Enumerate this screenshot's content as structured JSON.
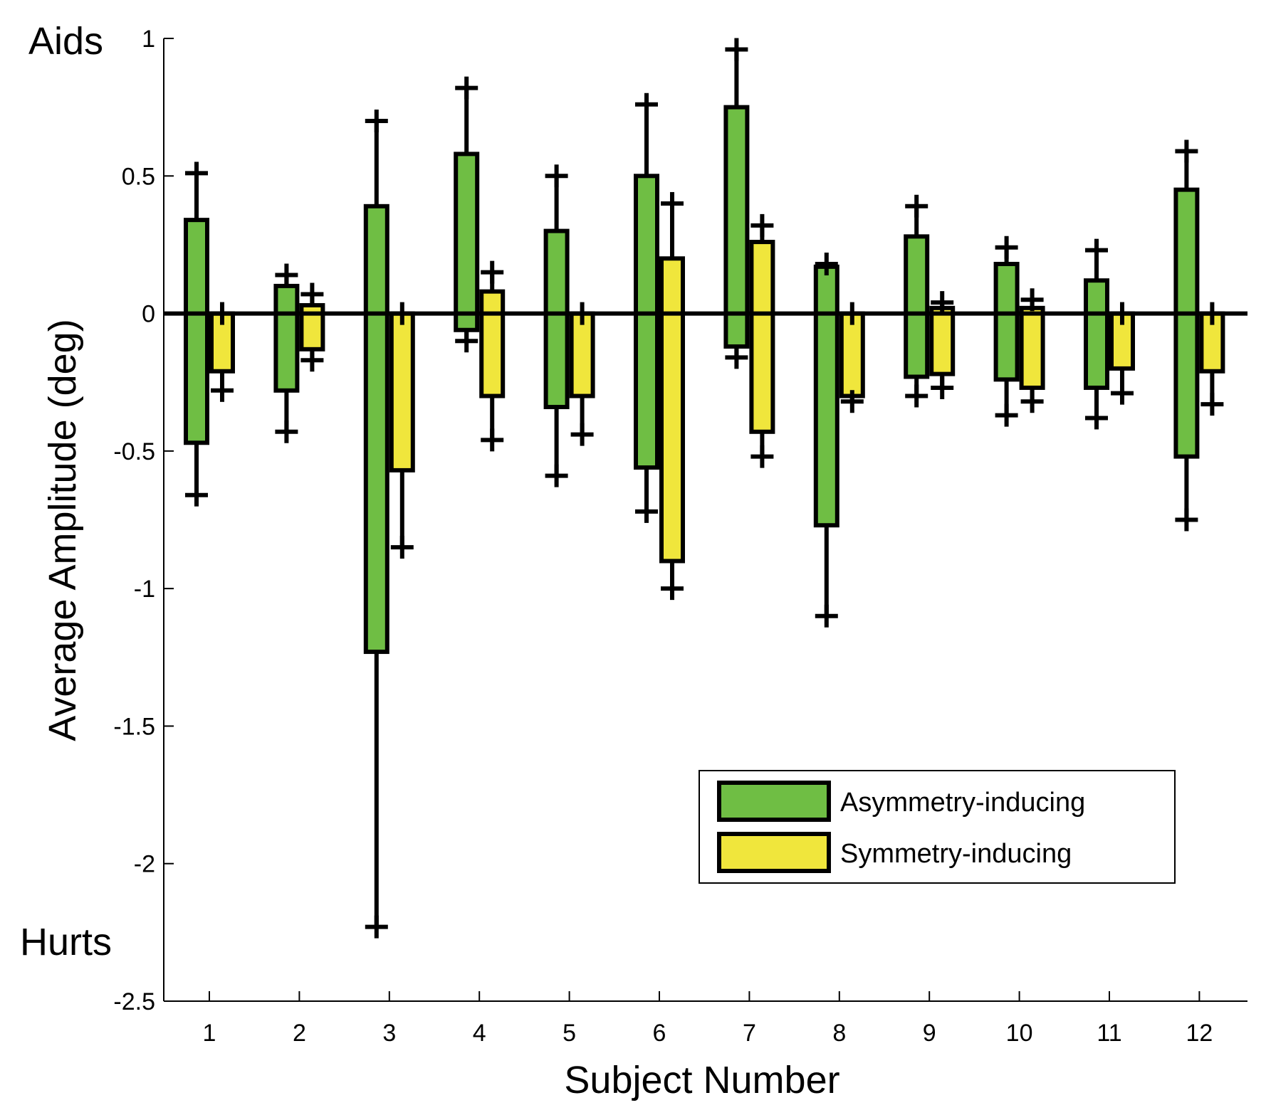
{
  "chart_data": {
    "type": "bar",
    "subtype": "floating-range-with-error-bars",
    "xlabel": "Subject Number",
    "ylabel": "Average Amplitude (deg)",
    "ylim": [
      -2.5,
      1
    ],
    "yticks": [
      1,
      0.5,
      0,
      -0.5,
      -1,
      -1.5,
      -2,
      -2.5
    ],
    "ytick_labels": [
      "1",
      "0.5",
      "0",
      "-0.5",
      "-1",
      "-1.5",
      "-2",
      "-2.5"
    ],
    "categories": [
      "1",
      "2",
      "3",
      "4",
      "5",
      "6",
      "7",
      "8",
      "9",
      "10",
      "11",
      "12"
    ],
    "annotations": {
      "top": "Aids",
      "bottom": "Hurts"
    },
    "legend_position": "lower-right",
    "series": [
      {
        "name": "Asymmetry-inducing",
        "color": "#6fbe44",
        "bar_low": [
          -0.47,
          -0.28,
          -1.23,
          -0.06,
          -0.34,
          -0.56,
          -0.12,
          -0.77,
          -0.23,
          -0.24,
          -0.27,
          -0.52
        ],
        "bar_high": [
          0.34,
          0.1,
          0.39,
          0.58,
          0.3,
          0.5,
          0.75,
          0.17,
          0.28,
          0.18,
          0.12,
          0.45
        ],
        "err_low": [
          -0.66,
          -0.43,
          -2.23,
          -0.1,
          -0.59,
          -0.72,
          -0.16,
          -1.1,
          -0.3,
          -0.37,
          -0.38,
          -0.75
        ],
        "err_high": [
          0.51,
          0.14,
          0.7,
          0.82,
          0.5,
          0.76,
          0.96,
          0.18,
          0.39,
          0.24,
          0.23,
          0.59
        ]
      },
      {
        "name": "Symmetry-inducing",
        "color": "#f0e63c",
        "bar_low": [
          -0.21,
          -0.13,
          -0.57,
          -0.3,
          -0.3,
          -0.9,
          -0.43,
          -0.3,
          -0.22,
          -0.27,
          -0.2,
          -0.21
        ],
        "bar_high": [
          0.0,
          0.03,
          0.0,
          0.08,
          0.0,
          0.2,
          0.26,
          0.0,
          0.02,
          0.02,
          0.0,
          0.0
        ],
        "err_low": [
          -0.28,
          -0.17,
          -0.85,
          -0.46,
          -0.44,
          -1.0,
          -0.52,
          -0.32,
          -0.27,
          -0.32,
          -0.29,
          -0.33
        ],
        "err_high": [
          0.0,
          0.07,
          0.0,
          0.15,
          0.0,
          0.4,
          0.32,
          0.0,
          0.04,
          0.05,
          0.0,
          0.0
        ]
      }
    ]
  }
}
